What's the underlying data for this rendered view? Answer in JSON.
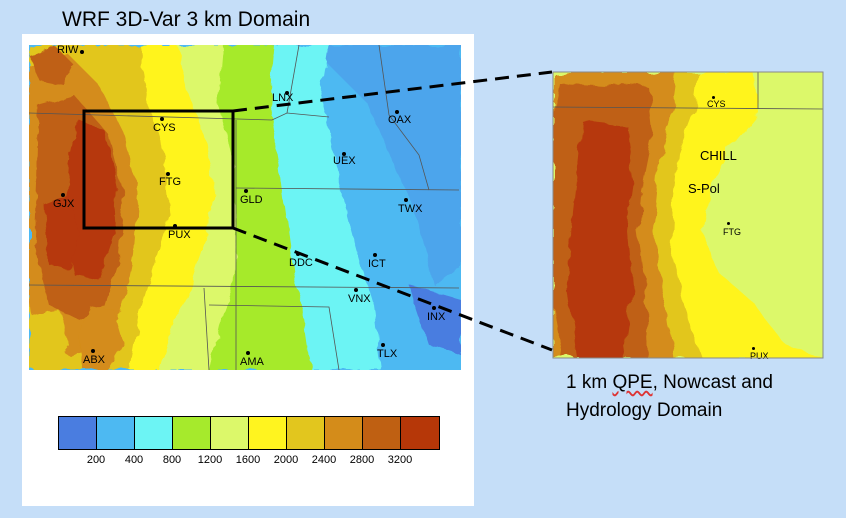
{
  "title": "WRF 3D-Var 3 km Domain",
  "main_map": {
    "stations": [
      {
        "id": "RIW",
        "label": "RIW"
      },
      {
        "id": "LNX",
        "label": "LNX"
      },
      {
        "id": "OAX",
        "label": "OAX"
      },
      {
        "id": "CYS",
        "label": "CYS"
      },
      {
        "id": "UEX",
        "label": "UEX"
      },
      {
        "id": "FTG",
        "label": "FTG"
      },
      {
        "id": "GJX",
        "label": "GJX"
      },
      {
        "id": "GLD",
        "label": "GLD"
      },
      {
        "id": "TWX",
        "label": "TWX"
      },
      {
        "id": "PUX",
        "label": "PUX"
      },
      {
        "id": "DDC",
        "label": "DDC"
      },
      {
        "id": "ICT",
        "label": "ICT"
      },
      {
        "id": "VNX",
        "label": "VNX"
      },
      {
        "id": "INX",
        "label": "INX"
      },
      {
        "id": "TLX",
        "label": "TLX"
      },
      {
        "id": "ABX",
        "label": "ABX"
      },
      {
        "id": "AMA",
        "label": "AMA"
      }
    ]
  },
  "legend": {
    "colors": [
      "#4a7de0",
      "#4db9f2",
      "#6cf4f4",
      "#a6ea2c",
      "#dcf86a",
      "#fff41f",
      "#e2c61e",
      "#d48c1a",
      "#bf6012",
      "#b63708"
    ],
    "ticks": [
      "200",
      "400",
      "800",
      "1200",
      "1600",
      "2000",
      "2400",
      "2800",
      "3200"
    ]
  },
  "inset": {
    "stations": [
      {
        "id": "CYS",
        "label": "CYS"
      },
      {
        "id": "FTG",
        "label": "FTG"
      },
      {
        "id": "PUX",
        "label": "PUX"
      }
    ],
    "radars": [
      "CHILL",
      "S-Pol"
    ]
  },
  "caption": {
    "line1_pre": "1 km ",
    "line1_qpe": "QPE",
    "line1_post": ", Nowcast and",
    "line2": "Hydrology Domain"
  }
}
